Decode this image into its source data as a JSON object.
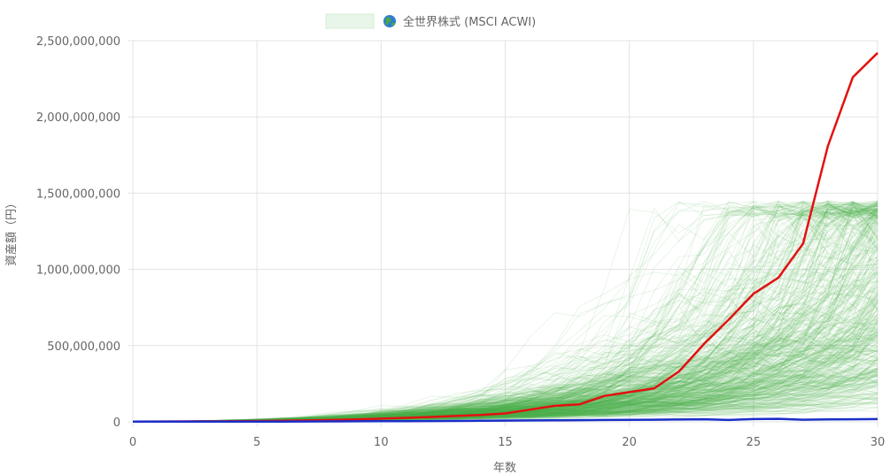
{
  "chart_data": {
    "type": "line",
    "legend": {
      "position": "top-center",
      "icon": "globe-icon",
      "label": "全世界株式 (MSCI ACWI)",
      "swatch_color": "#e8f5e9"
    },
    "xlabel": "年数",
    "ylabel": "資産額（円）",
    "xlim": [
      0,
      30
    ],
    "ylim": [
      0,
      2500000000
    ],
    "x_ticks": [
      0,
      5,
      10,
      15,
      20,
      25,
      30
    ],
    "y_ticks": [
      0,
      500000000,
      1000000000,
      1500000000,
      2000000000,
      2500000000
    ],
    "y_tick_labels": [
      "0",
      "500,000,000",
      "1,000,000,000",
      "1,500,000,000",
      "2,000,000,000",
      "2,500,000,000"
    ],
    "grid": true,
    "simulation_paths": {
      "color": "#4caf50",
      "note": "hundreds of faint simulated paths",
      "median_final_value": 200000000,
      "max_final_value": 1450000000
    },
    "series": [
      {
        "color": "#e31010",
        "x": [
          0,
          1,
          2,
          3,
          4,
          5,
          6,
          7,
          8,
          9,
          10,
          11,
          12,
          13,
          14,
          15,
          16,
          17,
          18,
          19,
          20,
          21,
          22,
          23,
          24,
          25,
          26,
          27,
          28,
          29,
          30
        ],
        "values": [
          2000000,
          2500000,
          3000000,
          3500000,
          4000000,
          5500000,
          7000000,
          9000000,
          12000000,
          16000000,
          21000000,
          26000000,
          32000000,
          38000000,
          45000000,
          55000000,
          80000000,
          105000000,
          115000000,
          170000000,
          195000000,
          220000000,
          330000000,
          510000000,
          670000000,
          840000000,
          945000000,
          1170000000,
          1810000000,
          2260000000,
          2420000000
        ]
      },
      {
        "color": "#1a2fc9",
        "x": [
          0,
          1,
          2,
          3,
          4,
          5,
          6,
          7,
          8,
          9,
          10,
          11,
          12,
          13,
          14,
          15,
          16,
          17,
          18,
          19,
          20,
          21,
          22,
          23,
          24,
          25,
          26,
          27,
          28,
          29,
          30
        ],
        "values": [
          1000000,
          1500000,
          1000000,
          1500000,
          1000000,
          1500000,
          2000000,
          2500000,
          3000000,
          3500000,
          4000000,
          4500000,
          5000000,
          6000000,
          7000000,
          8000000,
          9000000,
          10000000,
          11000000,
          12000000,
          13000000,
          14000000,
          15000000,
          17000000,
          12000000,
          18000000,
          20000000,
          14000000,
          16000000,
          17000000,
          18000000
        ]
      }
    ]
  }
}
